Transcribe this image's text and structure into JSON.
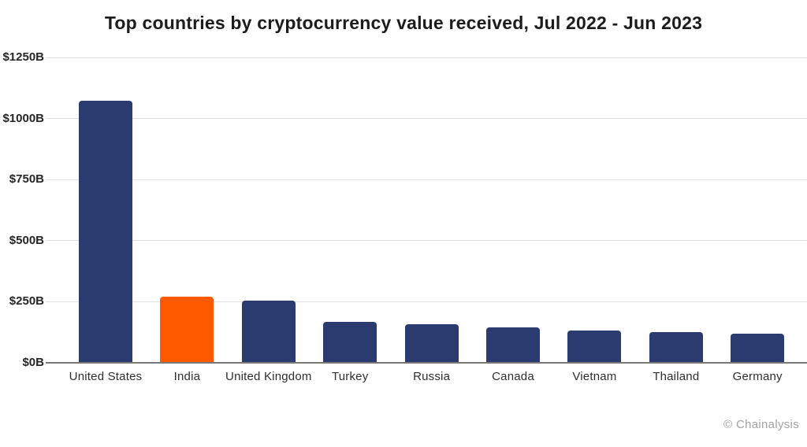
{
  "attribution": "© Chainalysis",
  "colors": {
    "background": "#ffffff",
    "bar_default": "#2b3b6f",
    "bar_highlight": "#ff5a00",
    "gridline": "#e2e2e2",
    "baseline": "#787878",
    "title_text": "#1c1c1c",
    "axis_text": "#262626",
    "attribution_text": "#a2a2a2"
  },
  "chart_data": {
    "type": "bar",
    "title": "Top countries by cryptocurrency value received, Jul 2022 - Jun 2023",
    "categories": [
      "United States",
      "India",
      "United Kingdom",
      "Turkey",
      "Russia",
      "Canada",
      "Vietnam",
      "Thailand",
      "Germany"
    ],
    "values": [
      1070,
      268,
      250,
      165,
      155,
      143,
      130,
      124,
      115
    ],
    "highlighted_category": "India",
    "highlight_index": 1,
    "y_ticks": [
      {
        "value": 0,
        "label": "$0B"
      },
      {
        "value": 250,
        "label": "$250B"
      },
      {
        "value": 500,
        "label": "$500B"
      },
      {
        "value": 750,
        "label": "$750B"
      },
      {
        "value": 1000,
        "label": "$1000B"
      },
      {
        "value": 1250,
        "label": "$1250B"
      }
    ],
    "ylim": [
      0,
      1250
    ],
    "xlabel": "",
    "ylabel": "",
    "grid": true,
    "legend": false
  }
}
